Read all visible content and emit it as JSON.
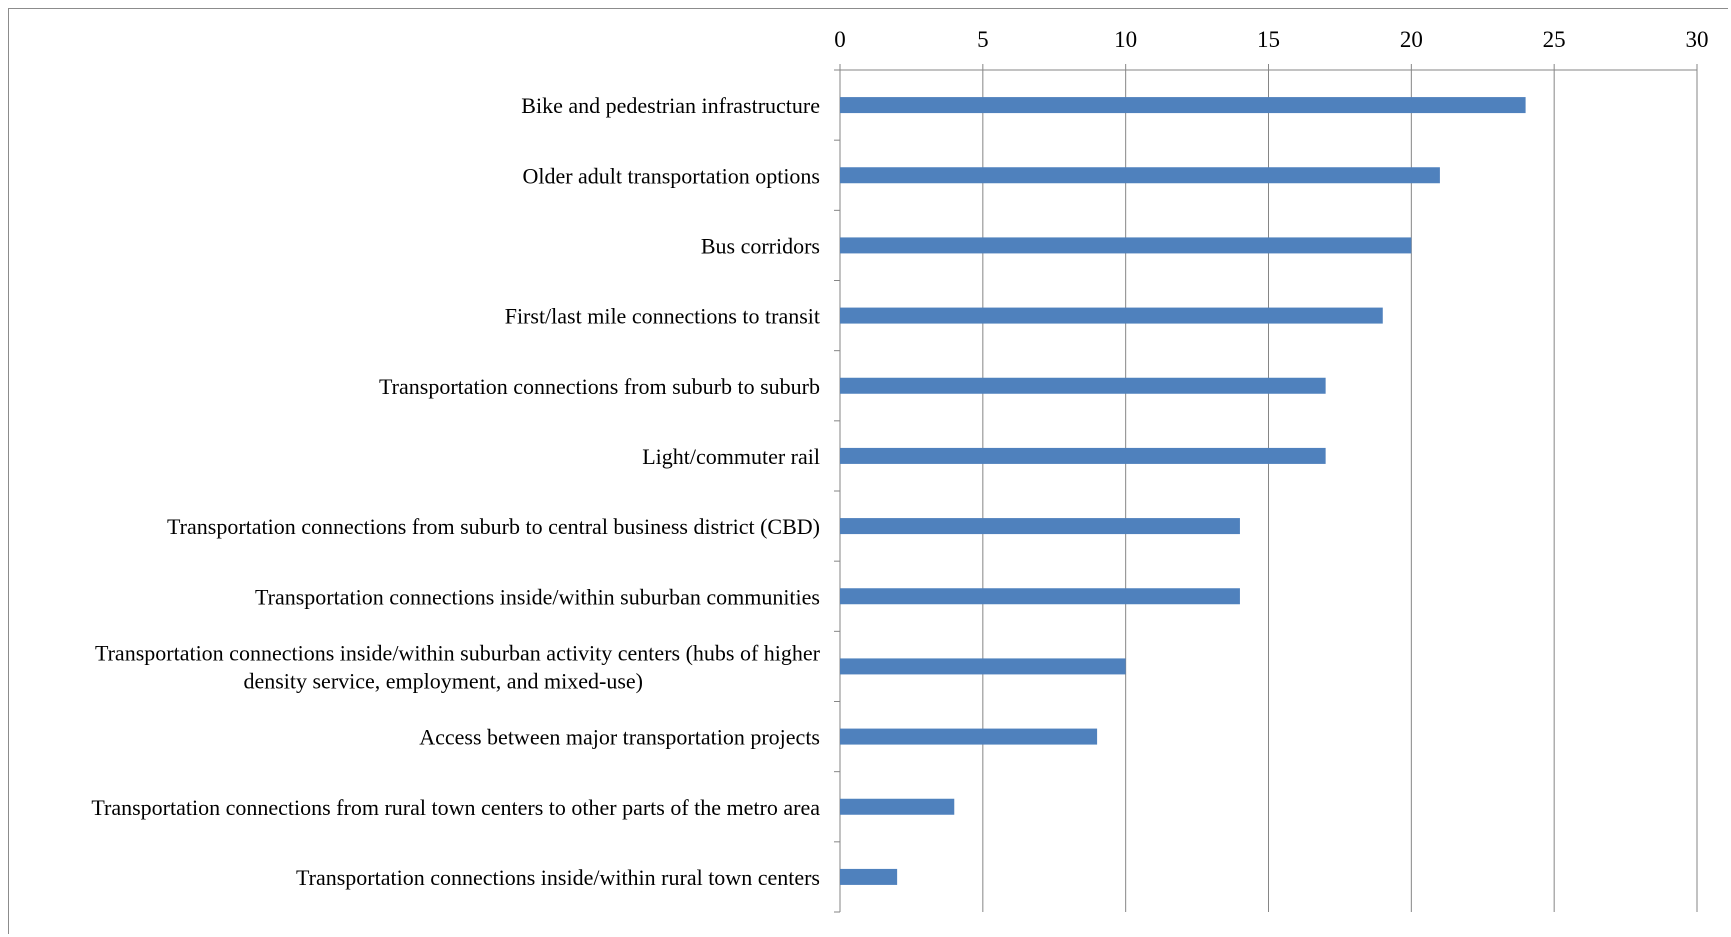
{
  "chart_data": {
    "type": "bar",
    "orientation": "horizontal",
    "title": "",
    "xlabel": "",
    "ylabel": "",
    "xlim": [
      0,
      30
    ],
    "xticks": [
      0,
      5,
      10,
      15,
      20,
      25,
      30
    ],
    "x_axis_position": "top",
    "grid": "vertical",
    "legend": "none",
    "bar_color": "#4f81bd",
    "categories": [
      [
        "Bike and pedestrian infrastructure"
      ],
      [
        "Older adult transportation options"
      ],
      [
        "Bus corridors"
      ],
      [
        "First/last mile connections to transit"
      ],
      [
        "Transportation connections from suburb to suburb"
      ],
      [
        "Light/commuter rail"
      ],
      [
        "Transportation connections from suburb to central business district (CBD)"
      ],
      [
        "Transportation connections inside/within suburban communities"
      ],
      [
        "Transportation connections inside/within suburban activity centers (hubs of higher",
        "density service, employment, and mixed-use)"
      ],
      [
        "Access between major transportation projects"
      ],
      [
        "Transportation connections from rural town centers to other parts of the metro area"
      ],
      [
        "Transportation connections inside/within rural town centers"
      ]
    ],
    "values": [
      24,
      21,
      20,
      19,
      17,
      17,
      14,
      14,
      10,
      9,
      4,
      2
    ]
  }
}
